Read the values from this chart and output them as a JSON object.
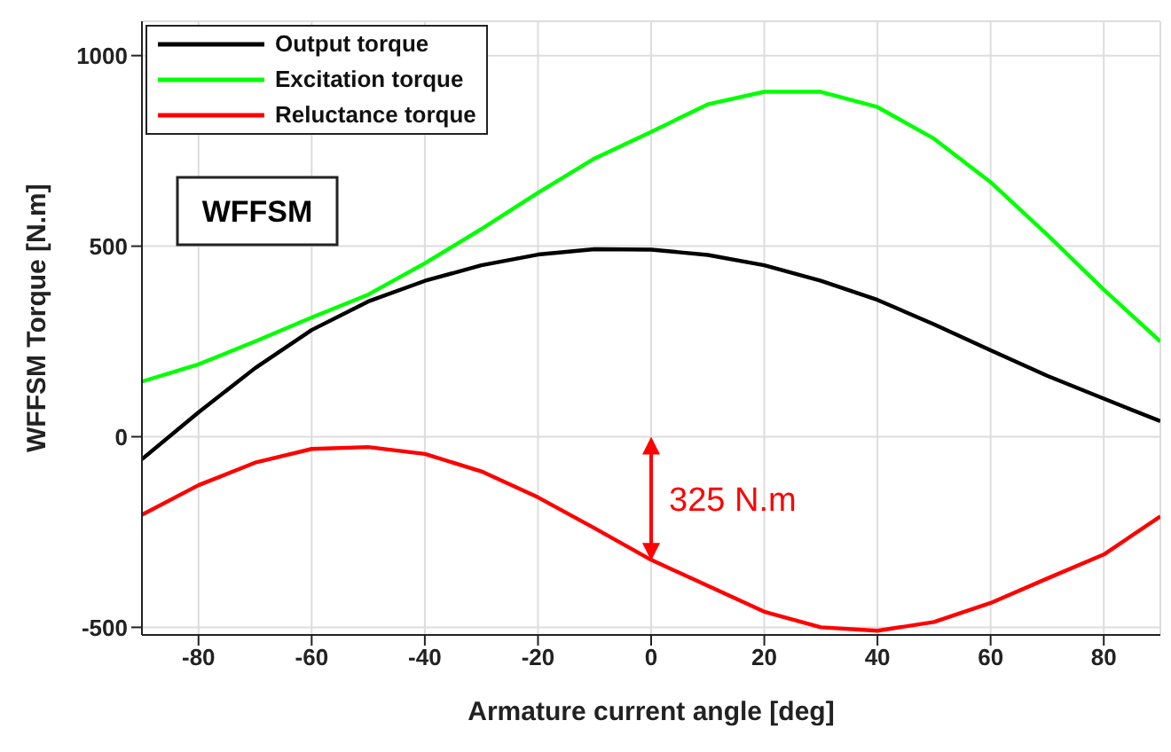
{
  "chart_data": {
    "type": "line",
    "xlabel": "Armature current angle [deg]",
    "ylabel": "WFFSM Torque [N.m]",
    "x": [
      -90,
      -80,
      -70,
      -60,
      -50,
      -40,
      -30,
      -20,
      -10,
      0,
      10,
      20,
      30,
      40,
      50,
      60,
      70,
      80,
      90
    ],
    "series": [
      {
        "name": "Output torque",
        "color": "#000000",
        "values": [
          -59,
          64,
          180,
          280,
          355,
          409,
          450,
          478,
          492,
          491,
          477,
          450,
          409,
          359,
          295,
          227,
          160,
          100,
          41
        ]
      },
      {
        "name": "Excitation torque",
        "color": "#00ff00",
        "values": [
          145,
          190,
          250,
          313,
          373,
          455,
          545,
          640,
          730,
          800,
          872,
          905,
          905,
          865,
          782,
          668,
          530,
          386,
          250
        ]
      },
      {
        "name": "Reluctance torque",
        "color": "#ff0000",
        "values": [
          -205,
          -127,
          -68,
          -32,
          -27,
          -45,
          -91,
          -159,
          -240,
          -323,
          -391,
          -459,
          -500,
          -509,
          -486,
          -436,
          -372,
          -309,
          -209
        ]
      }
    ],
    "annotations": [
      "WFFSM",
      {
        "text": "325 N.m",
        "x": 0,
        "y": -325
      }
    ],
    "xlim": [
      -90,
      90
    ],
    "xticks": [
      -80,
      -60,
      -40,
      -20,
      0,
      20,
      40,
      60,
      80
    ],
    "ylim": [
      -520,
      1090
    ],
    "yticks": [
      -500,
      0,
      500,
      1000
    ],
    "grid": true,
    "legend": "top left",
    "marker": "none",
    "line_style": "solid"
  }
}
